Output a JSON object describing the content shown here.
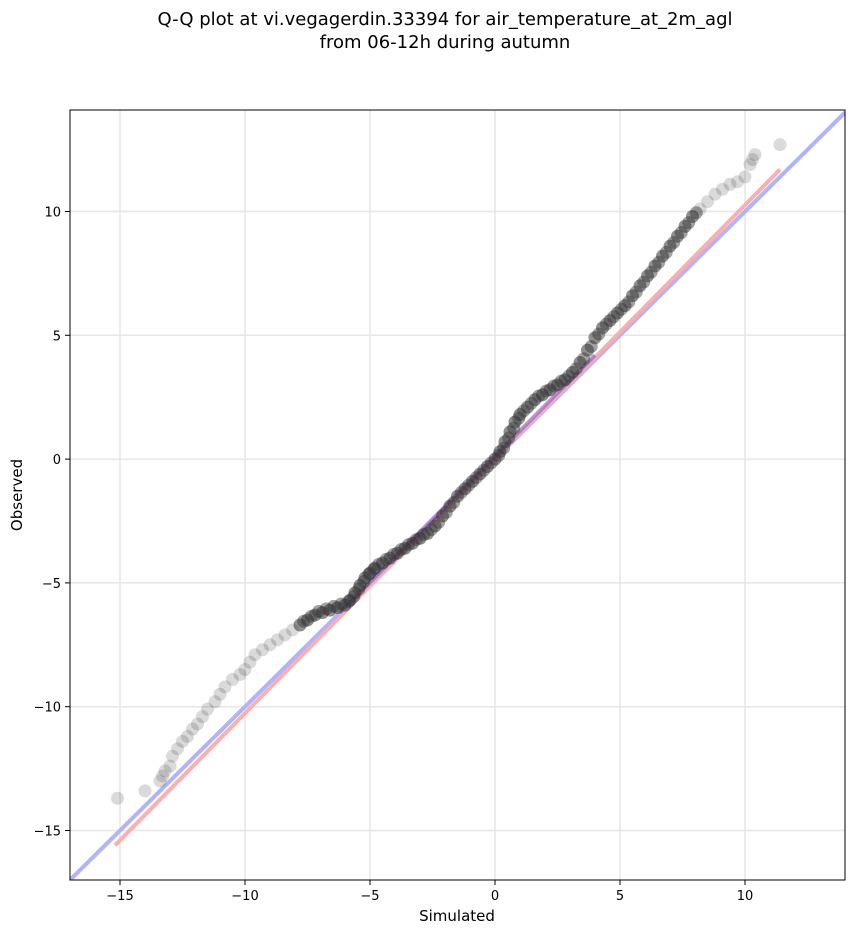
{
  "chart_data": {
    "type": "scatter",
    "title": "Q-Q plot at vi.vegagerdin.33394 for air_temperature_at_2m_agl",
    "subtitle": "from 06-12h during autumn",
    "xlabel": "Simulated",
    "ylabel": "Observed",
    "xlim": [
      -17,
      14
    ],
    "ylim": [
      -17,
      14.1
    ],
    "xticks": [
      -15,
      -10,
      -5,
      0,
      5,
      10
    ],
    "yticks": [
      -15,
      -10,
      -5,
      0,
      5,
      10
    ],
    "xtick_labels": [
      "−15",
      "−10",
      "−5",
      "0",
      "5",
      "10"
    ],
    "ytick_labels": [
      "−15",
      "−10",
      "−5",
      "0",
      "5",
      "10"
    ],
    "grid": true,
    "colors": {
      "points": "#333333",
      "identity_line": "#aab0ff",
      "fit_line": "#ffaaaa",
      "center_fit": "#9966cc"
    },
    "series": [
      {
        "kind": "quantile_points",
        "x": [
          -15.1,
          -14.0,
          -13.4,
          -13.3,
          -13.2,
          -13.0,
          -12.9,
          -12.7,
          -12.5,
          -12.3,
          -12.1,
          -11.9,
          -11.7,
          -11.5,
          -11.2,
          -11.0,
          -10.8,
          -10.5,
          -10.2,
          -10.0,
          -9.8,
          -9.6,
          -9.3,
          -9.0,
          -8.7,
          -8.4,
          -8.1,
          -7.8,
          -7.5,
          -7.2,
          -6.9,
          -6.6,
          -6.3,
          -6.0,
          -5.8,
          -5.6,
          -5.4,
          -5.2,
          -5.0,
          -4.8,
          -4.5,
          -4.2,
          -3.9,
          -3.6,
          -3.3,
          -3.0,
          -2.7,
          -2.4,
          -2.1,
          -1.8,
          -1.5,
          -1.2,
          -0.9,
          -0.6,
          -0.3,
          0.0,
          0.2,
          0.4,
          0.6,
          0.8,
          1.0,
          1.3,
          1.6,
          1.9,
          2.2,
          2.5,
          2.8,
          3.1,
          3.4,
          3.7,
          4.0,
          4.3,
          4.6,
          4.9,
          5.2,
          5.5,
          5.8,
          6.1,
          6.4,
          6.7,
          7.0,
          7.3,
          7.6,
          7.9,
          8.2,
          8.5,
          8.8,
          9.1,
          9.4,
          9.7,
          10.0,
          10.2,
          10.3,
          10.4,
          11.4
        ],
        "y": [
          -13.7,
          -13.4,
          -13.0,
          -12.8,
          -12.6,
          -12.4,
          -12.0,
          -11.7,
          -11.4,
          -11.2,
          -10.9,
          -10.7,
          -10.4,
          -10.1,
          -9.8,
          -9.5,
          -9.2,
          -8.9,
          -8.7,
          -8.5,
          -8.2,
          -7.9,
          -7.7,
          -7.5,
          -7.3,
          -7.1,
          -6.9,
          -6.7,
          -6.5,
          -6.3,
          -6.2,
          -6.1,
          -6.0,
          -5.9,
          -5.7,
          -5.4,
          -5.1,
          -4.8,
          -4.6,
          -4.4,
          -4.2,
          -4.0,
          -3.8,
          -3.6,
          -3.4,
          -3.2,
          -3.0,
          -2.7,
          -2.3,
          -1.9,
          -1.5,
          -1.2,
          -0.9,
          -0.6,
          -0.3,
          0.0,
          0.3,
          0.7,
          1.1,
          1.5,
          1.8,
          2.1,
          2.4,
          2.6,
          2.8,
          3.0,
          3.2,
          3.5,
          3.9,
          4.4,
          4.9,
          5.3,
          5.6,
          5.9,
          6.2,
          6.6,
          7.0,
          7.4,
          7.8,
          8.2,
          8.6,
          9.0,
          9.4,
          9.8,
          10.1,
          10.4,
          10.7,
          10.9,
          11.1,
          11.2,
          11.4,
          11.9,
          12.1,
          12.3,
          12.7
        ]
      },
      {
        "kind": "identity_line",
        "x": [
          -17,
          14
        ],
        "y": [
          -17,
          14
        ]
      },
      {
        "kind": "regression_line",
        "x": [
          -15.2,
          11.4
        ],
        "y": [
          -15.6,
          11.7
        ]
      },
      {
        "kind": "center_regression_line",
        "x": [
          -6.2,
          4.0
        ],
        "y": [
          -6.2,
          4.2
        ]
      }
    ]
  }
}
